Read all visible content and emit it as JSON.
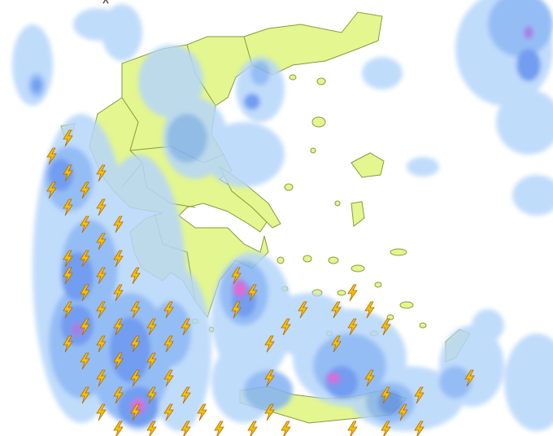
{
  "map": {
    "colors": {
      "sea": "#ffffff",
      "land": "#e3f68f",
      "border": "#8a9a3a",
      "rain_light": "#b6d6fb",
      "rain_medium": "#82b2f4",
      "rain_heavy": "#5a8cee",
      "rain_very_heavy": "#9668e0",
      "rain_extreme": "#e64cc4",
      "lightning": "#f5c200"
    },
    "icons": {
      "lightning": "lightning-icon",
      "snow": "snowflake-icon"
    }
  }
}
